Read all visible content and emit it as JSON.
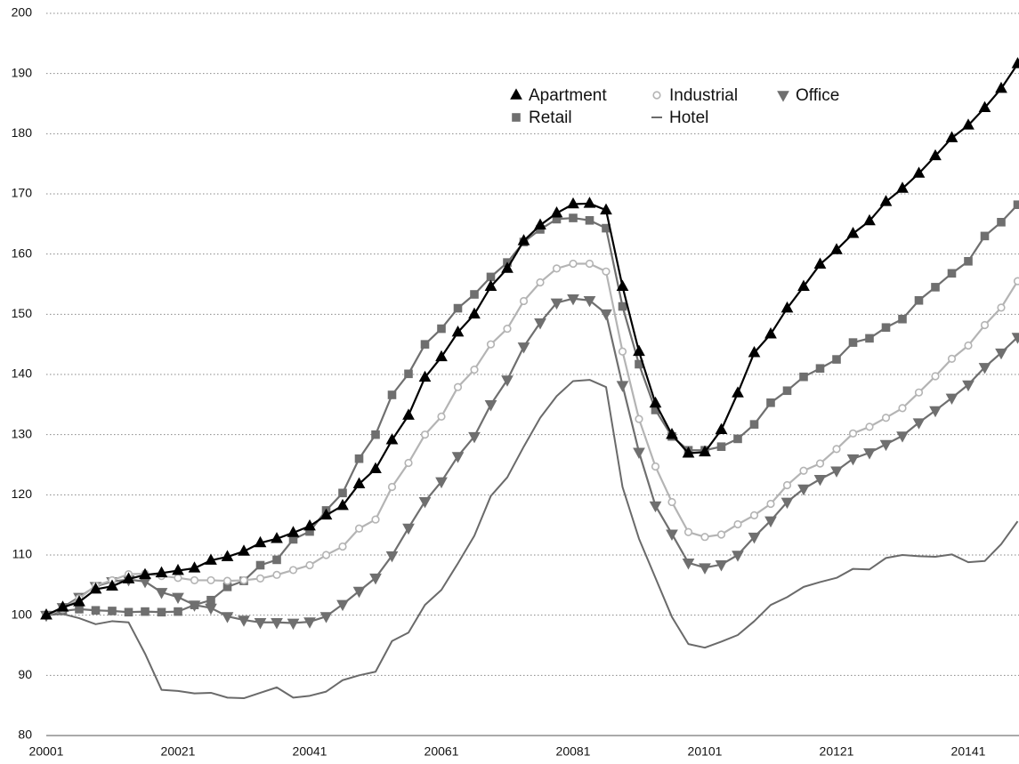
{
  "chart_data": {
    "type": "line",
    "categories": [
      "20001",
      null,
      null,
      null,
      null,
      null,
      null,
      null,
      "20021",
      null,
      null,
      null,
      null,
      null,
      null,
      null,
      "20041",
      null,
      null,
      null,
      null,
      null,
      null,
      null,
      "20061",
      null,
      null,
      null,
      null,
      null,
      null,
      null,
      "20081",
      null,
      null,
      null,
      null,
      null,
      null,
      null,
      "20101",
      null,
      null,
      null,
      null,
      null,
      null,
      null,
      "20121",
      null,
      null,
      null,
      null,
      null,
      null,
      null,
      "20141",
      null,
      null,
      null
    ],
    "ylim": [
      80,
      200
    ],
    "yticks": [
      80,
      90,
      100,
      110,
      120,
      130,
      140,
      150,
      160,
      170,
      180,
      190,
      200
    ],
    "grid": true,
    "legend": "upper center",
    "series": [
      {
        "name": "Apartment",
        "color": "#000000",
        "marker": "triangle-up",
        "values": [
          100,
          101.3,
          102.2,
          104.3,
          104.8,
          106,
          106.7,
          107,
          107.4,
          107.8,
          109.1,
          109.7,
          110.6,
          112,
          112.7,
          113.7,
          114.8,
          116.6,
          118.2,
          121.8,
          124.3,
          129.1,
          133.2,
          139.5,
          142.9,
          147,
          150,
          154.6,
          157.6,
          162.2,
          164.8,
          166.8,
          168.3,
          168.4,
          167.3,
          154.6,
          143.8,
          135.2,
          130,
          126.9,
          127.1,
          130.8,
          136.9,
          143.6,
          146.7,
          151,
          154.6,
          158.3,
          160.7,
          163.4,
          165.5,
          168.7,
          170.9,
          173.4,
          176.3,
          179.3,
          181.4,
          184.3,
          187.5,
          191.6
        ]
      },
      {
        "name": "Industrial",
        "color": "#b4b4b4",
        "marker": "circle",
        "values": [
          100,
          101,
          102.8,
          104.9,
          105.8,
          106.8,
          106.9,
          106.5,
          106.2,
          105.8,
          105.8,
          105.7,
          105.8,
          106.1,
          106.7,
          107.5,
          108.3,
          110,
          111.4,
          114.4,
          115.9,
          121.3,
          125.3,
          130,
          133,
          137.9,
          140.8,
          145,
          147.6,
          152.2,
          155.3,
          157.6,
          158.4,
          158.4,
          157.1,
          143.8,
          132.6,
          124.7,
          118.8,
          113.8,
          113,
          113.4,
          115.1,
          116.6,
          118.5,
          121.6,
          124,
          125.2,
          127.6,
          130.2,
          131.3,
          132.8,
          134.4,
          137,
          139.7,
          142.6,
          144.8,
          148.2,
          151.1,
          155.5
        ]
      },
      {
        "name": "Office",
        "color": "#6f6f6f",
        "marker": "triangle-down",
        "values": [
          100,
          101.3,
          103,
          104.8,
          105.6,
          105.9,
          105.6,
          103.8,
          103,
          101.7,
          101.2,
          99.8,
          99.2,
          98.8,
          98.8,
          98.7,
          98.9,
          99.8,
          101.8,
          104,
          106.2,
          109.9,
          114.5,
          118.9,
          122.2,
          126.4,
          129.7,
          135,
          139.1,
          144.6,
          148.6,
          151.9,
          152.6,
          152.3,
          150.1,
          138.2,
          127.1,
          118.2,
          113.5,
          108.7,
          107.9,
          108.4,
          110,
          113,
          115.7,
          118.8,
          121,
          122.6,
          124,
          126,
          127,
          128.4,
          129.8,
          132,
          134,
          136.1,
          138.3,
          141.2,
          143.6,
          146.2
        ]
      },
      {
        "name": "Retail",
        "color": "#6f6f6f",
        "marker": "square",
        "values": [
          100,
          100.7,
          101,
          100.8,
          100.7,
          100.5,
          100.6,
          100.5,
          100.6,
          101.7,
          102.5,
          104.7,
          105.7,
          108.3,
          109.2,
          112.6,
          113.9,
          117.4,
          120.3,
          126,
          130,
          136.6,
          140.1,
          145,
          147.6,
          151,
          153.3,
          156.2,
          158.6,
          162,
          164.1,
          165.8,
          166,
          165.6,
          164.3,
          151.3,
          141.7,
          134.1,
          129.7,
          127.4,
          127.4,
          128,
          129.3,
          131.7,
          135.3,
          137.3,
          139.6,
          141,
          142.5,
          145.3,
          146,
          147.8,
          149.2,
          152.3,
          154.5,
          156.8,
          158.8,
          163,
          165.3,
          168.2
        ]
      },
      {
        "name": "Hotel",
        "color": "#6a6a6a",
        "marker": "none",
        "values": [
          100,
          100.2,
          99.5,
          98.5,
          99,
          98.8,
          93.6,
          87.6,
          87.4,
          87,
          87.1,
          86.3,
          86.2,
          87.1,
          88,
          86.3,
          86.6,
          87.3,
          89.2,
          90,
          90.6,
          95.7,
          97.1,
          101.7,
          104.2,
          108.6,
          113.2,
          119.8,
          122.9,
          128,
          132.8,
          136.4,
          138.9,
          139.1,
          137.9,
          121.3,
          112.7,
          106.2,
          99.7,
          95.2,
          94.6,
          95.6,
          96.7,
          99,
          101.7,
          103,
          104.7,
          105.5,
          106.2,
          107.7,
          107.6,
          109.5,
          110,
          109.8,
          109.7,
          110.1,
          108.8,
          109,
          111.8,
          115.6
        ]
      }
    ]
  }
}
